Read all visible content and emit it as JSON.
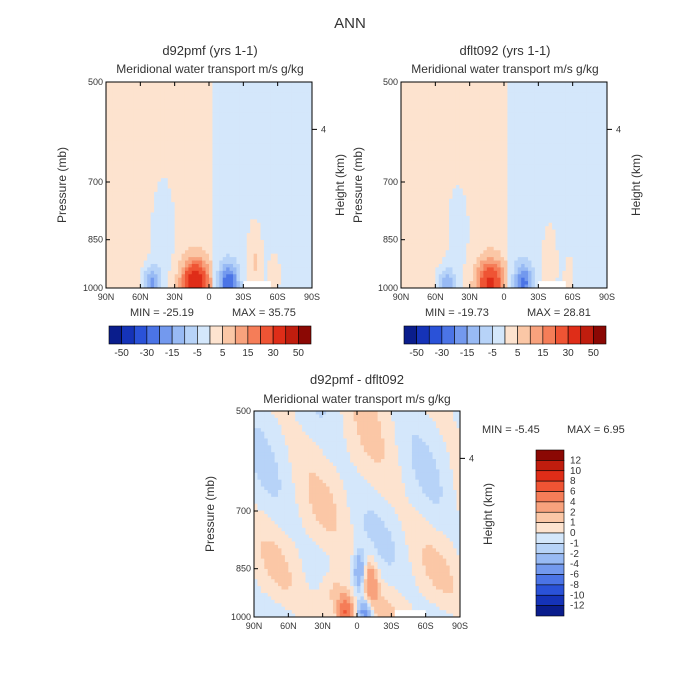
{
  "figure_title": "ANN",
  "chart_data": [
    {
      "type": "heatmap",
      "title": "d92pmf (yrs 1-1)",
      "subtitle": "Meridional water transport m/s g/kg",
      "xlabel": "",
      "ylabel": "Pressure (mb)",
      "ylabel_right": "Height (km)",
      "x_ticks": [
        "90N",
        "60N",
        "30N",
        "0",
        "30S",
        "60S",
        "90S"
      ],
      "y_ticks": [
        "500",
        "700",
        "850",
        "1000"
      ],
      "y_right_ticks": [
        "4"
      ],
      "min_label": "MIN = -25.19",
      "max_label": "MAX = 35.75",
      "colorbar_labels": [
        "-50",
        "-30",
        "-15",
        "-5",
        "5",
        "15",
        "30",
        "50"
      ],
      "zero_line_lat": -2
    },
    {
      "type": "heatmap",
      "title": "dflt092 (yrs 1-1)",
      "subtitle": "Meridional water transport m/s g/kg",
      "xlabel": "",
      "ylabel": "Pressure (mb)",
      "ylabel_right": "Height (km)",
      "x_ticks": [
        "90N",
        "60N",
        "30N",
        "0",
        "30S",
        "60S",
        "90S"
      ],
      "y_ticks": [
        "500",
        "700",
        "850",
        "1000"
      ],
      "y_right_ticks": [
        "4"
      ],
      "min_label": "MIN = -19.73",
      "max_label": "MAX = 28.81",
      "colorbar_labels": [
        "-50",
        "-30",
        "-15",
        "-5",
        "5",
        "15",
        "30",
        "50"
      ],
      "zero_line_lat": -4
    },
    {
      "type": "heatmap",
      "title": "d92pmf - dflt092",
      "subtitle": "Meridional water transport m/s g/kg",
      "xlabel": "",
      "ylabel": "Pressure (mb)",
      "ylabel_right": "Height (km)",
      "x_ticks": [
        "90N",
        "60N",
        "30N",
        "0",
        "30S",
        "60S",
        "90S"
      ],
      "y_ticks": [
        "500",
        "700",
        "850",
        "1000"
      ],
      "y_right_ticks": [
        "4"
      ],
      "min_label": "MIN =   -5.45",
      "max_label": "MAX =    6.95",
      "colorbar_labels": [
        "12",
        "10",
        "8",
        "6",
        "4",
        "2",
        "1",
        "0",
        "-1",
        "-2",
        "-4",
        "-6",
        "-8",
        "-10",
        "-12"
      ]
    }
  ],
  "colors": {
    "pos": [
      "#fde3cf",
      "#fbc7a6",
      "#f8a27d",
      "#f57d58",
      "#ef5434",
      "#df2d18",
      "#c01d0e",
      "#8b0804"
    ],
    "neg": [
      "#d4e7fb",
      "#b7d3f8",
      "#98baf4",
      "#7399ee",
      "#4b74e6",
      "#2a52d8",
      "#1533b8",
      "#0a1d8c"
    ],
    "diff_pos": [
      "#fde3cf",
      "#fbc7a6",
      "#f8a27d",
      "#f57d58",
      "#ef5434",
      "#df2d18",
      "#c01d0e",
      "#8b0804"
    ],
    "diff_neg": [
      "#d4e7fb",
      "#b7d3f8",
      "#98baf4",
      "#7399ee",
      "#4b74e6",
      "#2a52d8",
      "#1533b8",
      "#0a1d8c"
    ],
    "missing": "#ffffff"
  }
}
